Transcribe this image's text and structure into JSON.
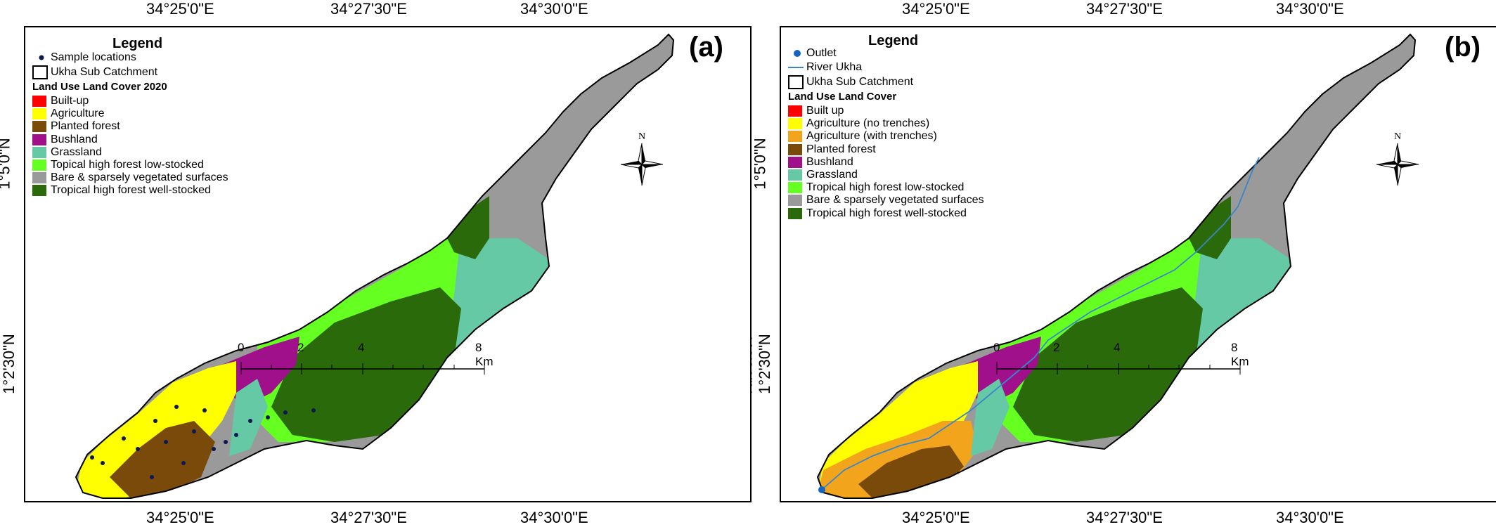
{
  "coordinates": {
    "top_lon": [
      "34°25'0\"E",
      "34°27'30\"E",
      "34°30'0\"E"
    ],
    "bottom_lon": [
      "34°25'0\"E",
      "34°27'30\"E",
      "34°30'0\"E"
    ],
    "lat": [
      "1°5'0\"N",
      "1°2'30\"N"
    ]
  },
  "panel_a": {
    "label": "(a)",
    "legend_title": "Legend",
    "sample_label": "Sample locations",
    "catchment_label": "Ukha Sub Catchment",
    "lulc_heading": "Land Use Land Cover 2020",
    "classes": [
      {
        "label": "Built-up",
        "color": "#ff0000"
      },
      {
        "label": "Agriculture",
        "color": "#ffff00"
      },
      {
        "label": "Planted forest",
        "color": "#7a4a0a"
      },
      {
        "label": "Bushland",
        "color": "#a0108a"
      },
      {
        "label": "Grassland",
        "color": "#66c9a6"
      },
      {
        "label": "Topical high forest low-stocked",
        "color": "#66ff22"
      },
      {
        "label": "Bare & sparsely vegetated surfaces",
        "color": "#9a9a9a"
      },
      {
        "label": "Tropical high forest well-stocked",
        "color": "#2a6a0a"
      }
    ],
    "scale_ticks": [
      "0",
      "2",
      "4",
      "8 Km"
    ],
    "north": "N"
  },
  "panel_b": {
    "label": "(b)",
    "legend_title": "Legend",
    "outlet_label": "Outlet",
    "river_label": "River Ukha",
    "catchment_label": "Ukha Sub Catchment",
    "lulc_heading": "Land Use Land Cover",
    "classes": [
      {
        "label": "Built up",
        "color": "#ff0000"
      },
      {
        "label": "Agriculture (no trenches)",
        "color": "#ffff00"
      },
      {
        "label": "Agriculture (with trenches)",
        "color": "#f2a51c"
      },
      {
        "label": "Planted forest",
        "color": "#7a4a0a"
      },
      {
        "label": "Bushland",
        "color": "#a0108a"
      },
      {
        "label": "Grassland",
        "color": "#66c9a6"
      },
      {
        "label": "Tropical high forest low-stocked",
        "color": "#66ff22"
      },
      {
        "label": "Bare & sparsely vegetated surfaces",
        "color": "#9a9a9a"
      },
      {
        "label": "Tropical high forest well-stocked",
        "color": "#2a6a0a"
      }
    ],
    "scale_ticks": [
      "0",
      "2",
      "4",
      "8 Km"
    ],
    "north": "N"
  },
  "colors": {
    "outlet": "#1565c0",
    "river": "#3a86c8",
    "sample_point": "#0a1a50"
  }
}
